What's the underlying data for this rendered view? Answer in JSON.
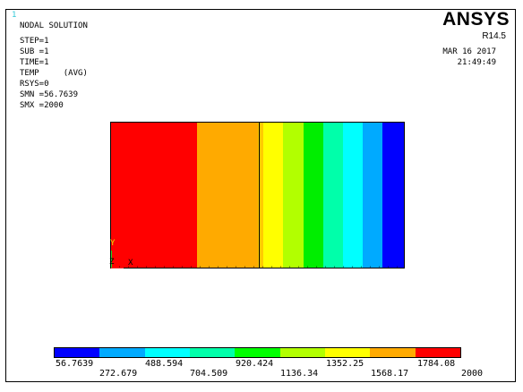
{
  "window_number": "1",
  "header": {
    "brand": "ANSYS",
    "release": "R14.5",
    "date": "MAR 16 2017",
    "time": "21:49:49"
  },
  "info": {
    "title": "NODAL SOLUTION",
    "step": "STEP=1",
    "sub": "SUB =1",
    "time": "TIME=1",
    "temp": "TEMP     (AVG)",
    "rsys": "RSYS=0",
    "smn": "SMN =56.7639",
    "smx": "SMX =2000"
  },
  "triad": {
    "y": "Y",
    "z": "Z",
    "x": "X"
  },
  "contour_bands": [
    {
      "color": "#ff0000",
      "fraction": 0.295
    },
    {
      "color": "#ffaa00",
      "fraction": 0.207
    },
    {
      "color": "#ffcc00",
      "fraction": 0.018
    },
    {
      "color": "#ffff00",
      "fraction": 0.068
    },
    {
      "color": "#b2ff00",
      "fraction": 0.068
    },
    {
      "color": "#00ee00",
      "fraction": 0.068
    },
    {
      "color": "#00ffaa",
      "fraction": 0.068
    },
    {
      "color": "#00ffff",
      "fraction": 0.068
    },
    {
      "color": "#00aaff",
      "fraction": 0.068
    },
    {
      "color": "#0000ff",
      "fraction": 0.072
    }
  ],
  "legend": {
    "colors": [
      "#0000ff",
      "#00aaff",
      "#00ffff",
      "#00ffaa",
      "#00ff00",
      "#b2ff00",
      "#ffff00",
      "#ffaa00",
      "#ff0000"
    ],
    "labels_top": [
      "56.7639",
      "488.594",
      "920.424",
      "1352.25",
      "1784.08"
    ],
    "labels_bottom": [
      "272.679",
      "704.509",
      "1136.34",
      "1568.17",
      "2000"
    ]
  }
}
